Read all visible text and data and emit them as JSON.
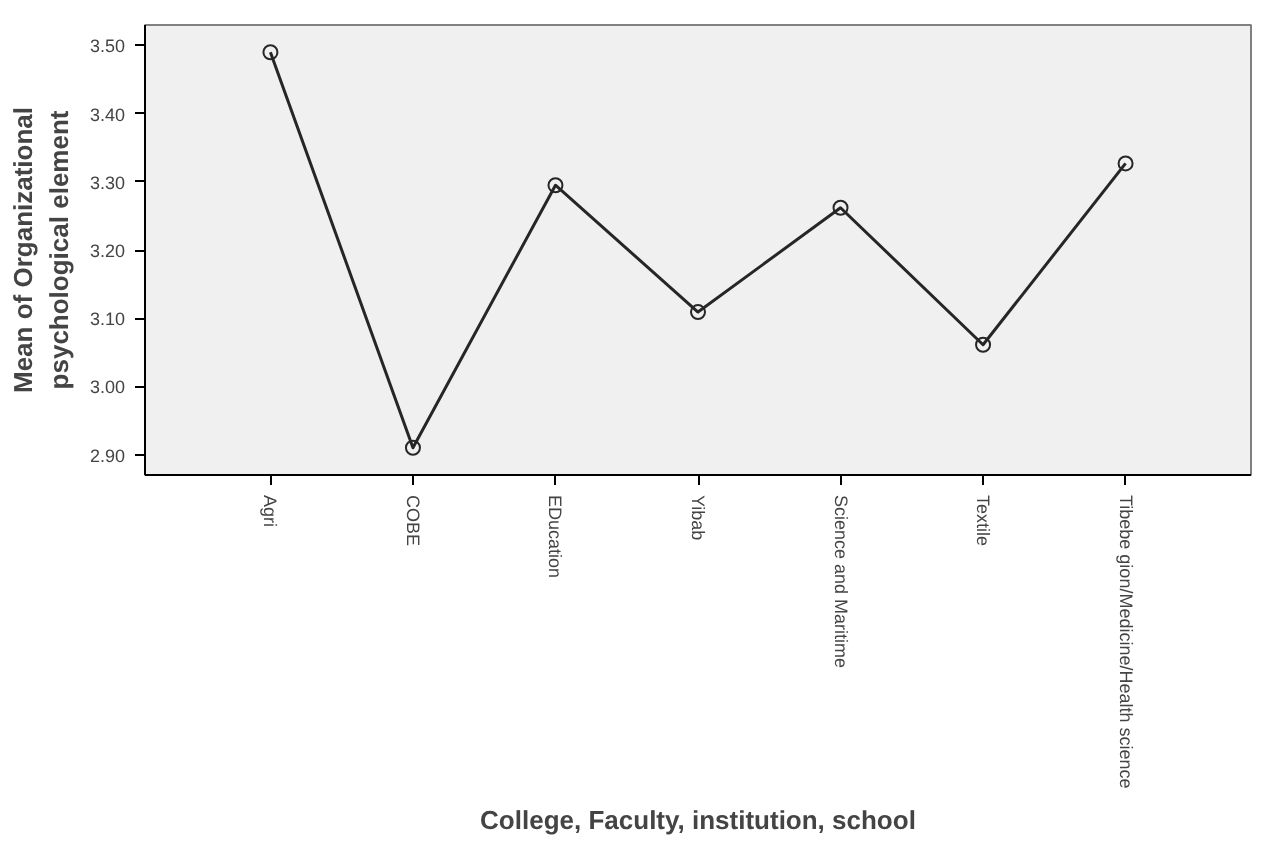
{
  "chart_data": {
    "type": "line",
    "xlabel": "College, Faculty, institution, school",
    "ylabel": "Mean of Organizational psychological element",
    "categories": [
      "Agri",
      "COBE",
      "EDucation",
      "Yibab",
      "Science and Maritime",
      "Textile",
      "Tibebe gion/Medicine/Health science"
    ],
    "series": [
      {
        "color": "#262626",
        "values": [
          3.49,
          2.91,
          3.295,
          3.109,
          3.262,
          3.061,
          3.327
        ]
      }
    ],
    "ylim": [
      2.87,
      3.53
    ],
    "yticks": [
      {
        "value": 2.9,
        "label": "2.90"
      },
      {
        "value": 3.0,
        "label": "3.00"
      },
      {
        "value": 3.1,
        "label": "3.10"
      },
      {
        "value": 3.2,
        "label": "3.20"
      },
      {
        "value": 3.3,
        "label": "3.30"
      },
      {
        "value": 3.4,
        "label": "3.40"
      },
      {
        "value": 3.5,
        "label": "3.50"
      }
    ],
    "grid": false,
    "marker": "circle",
    "line_style": "solid"
  }
}
